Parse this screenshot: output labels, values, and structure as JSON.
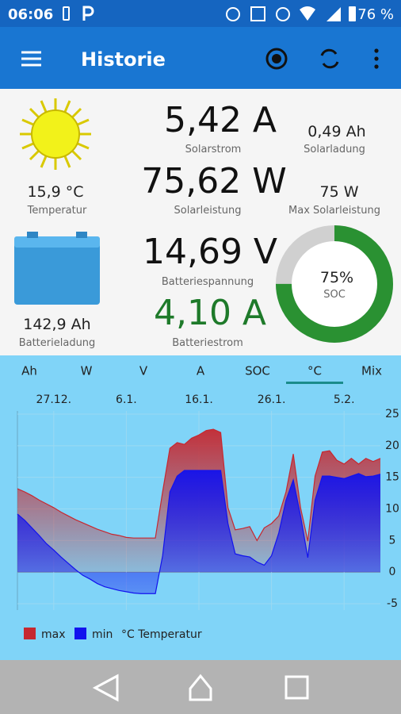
{
  "status_bar": {
    "time": "06:06",
    "battery": "76 %"
  },
  "app_bar": {
    "title": "Historie"
  },
  "dashboard": {
    "solar_current": {
      "value": "5,42 A",
      "label": "Solarstrom"
    },
    "solar_charge": {
      "value": "0,49 Ah",
      "label": "Solarladung"
    },
    "temperature": {
      "value": "15,9 °C",
      "label": "Temperatur"
    },
    "solar_power": {
      "value": "75,62 W",
      "label": "Solarleistung"
    },
    "max_solar_power": {
      "value": "75 W",
      "label": "Max Solarleistung"
    },
    "battery_voltage": {
      "value": "14,69 V",
      "label": "Batteriespannung"
    },
    "battery_charge": {
      "value": "142,9 Ah",
      "label": "Batterieladung"
    },
    "battery_current": {
      "value": "4,10 A",
      "label": "Batteriestrom"
    },
    "soc": {
      "value": 75,
      "value_label": "75%",
      "label": "SOC",
      "color": "#2a9132",
      "track_color": "#d0d0d0"
    }
  },
  "tabs": {
    "items": [
      "Ah",
      "W",
      "V",
      "A",
      "SOC",
      "°C",
      "Mix"
    ],
    "selected": 5
  },
  "chart_data": {
    "type": "area",
    "legend_title": "°C Temperatur",
    "categories": [
      null,
      null,
      null,
      null,
      null,
      "27.12.",
      null,
      null,
      null,
      null,
      null,
      null,
      null,
      null,
      null,
      "6.1.",
      null,
      null,
      null,
      null,
      null,
      null,
      null,
      null,
      null,
      "16.1.",
      null,
      null,
      null,
      null,
      null,
      null,
      null,
      null,
      null,
      "26.1.",
      null,
      null,
      null,
      null,
      null,
      null,
      null,
      null,
      null,
      "5.2.",
      null,
      null,
      null,
      null,
      null
    ],
    "series": [
      {
        "name": "max",
        "color": "#c62830",
        "values": [
          13.2,
          12.7,
          12.1,
          11.4,
          10.8,
          10.2,
          9.5,
          8.9,
          8.3,
          7.8,
          7.3,
          6.8,
          6.4,
          6.0,
          5.8,
          5.5,
          5.4,
          5.4,
          5.4,
          5.4,
          12.7,
          19.6,
          20.5,
          20.2,
          21.2,
          21.7,
          22.4,
          22.6,
          22.1,
          10.2,
          6.7,
          6.9,
          7.2,
          5.0,
          7.0,
          7.7,
          8.9,
          12.7,
          18.7,
          10.2,
          4.9,
          15.2,
          19.0,
          19.2,
          17.7,
          17.1,
          18.0,
          17.1,
          18.0,
          17.5,
          18.0
        ]
      },
      {
        "name": "min",
        "color": "#1212ee",
        "values": [
          9.2,
          8.2,
          7.0,
          5.8,
          4.5,
          3.5,
          2.4,
          1.4,
          0.4,
          -0.5,
          -1.1,
          -1.8,
          -2.3,
          -2.6,
          -2.9,
          -3.1,
          -3.3,
          -3.4,
          -3.4,
          -3.4,
          2.6,
          12.7,
          15.2,
          16.1,
          16.1,
          16.1,
          16.1,
          16.1,
          16.1,
          7.7,
          2.9,
          2.6,
          2.4,
          1.6,
          1.1,
          2.6,
          6.2,
          11.4,
          14.6,
          8.9,
          2.3,
          11.4,
          15.2,
          15.2,
          15.0,
          14.8,
          15.2,
          15.6,
          15.1,
          15.2,
          15.5
        ]
      }
    ],
    "ylim": [
      -6,
      25
    ],
    "yticks": [
      -5,
      0,
      5,
      10,
      15,
      20,
      25
    ],
    "grid": true
  }
}
